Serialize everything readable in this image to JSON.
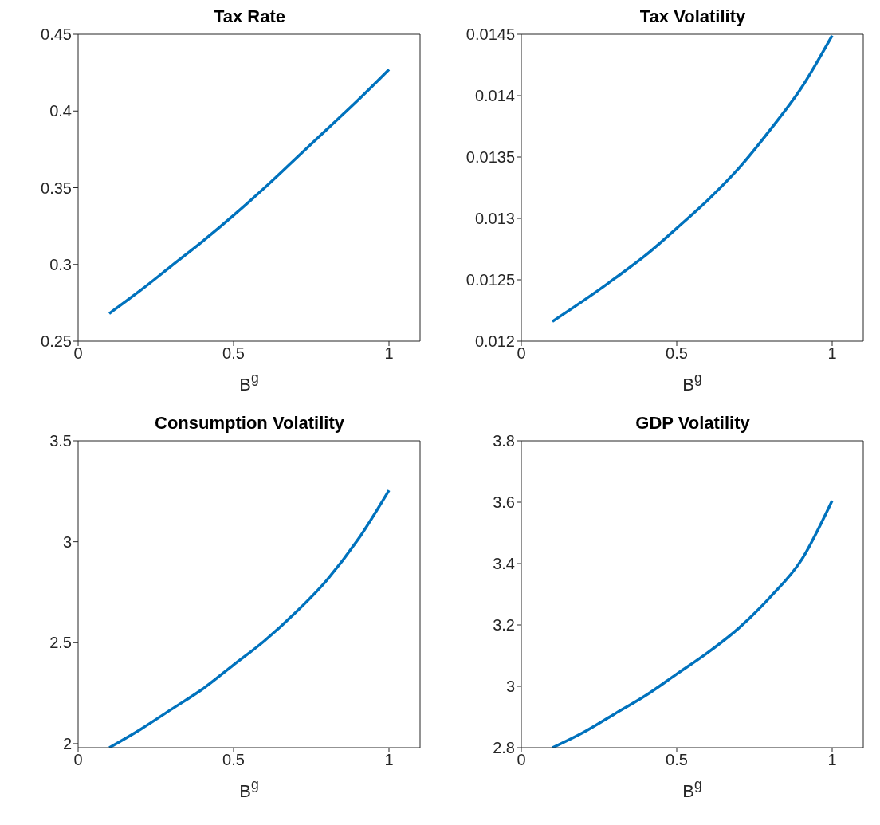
{
  "chart_data": [
    {
      "type": "line",
      "title": "Tax Rate",
      "xlabel": "B$^{g}$",
      "x": [
        0.1,
        0.2,
        0.3,
        0.4,
        0.5,
        0.6,
        0.7,
        0.8,
        0.9,
        1
      ],
      "series": [
        {
          "color": "#0072bd",
          "values": [
            0.268,
            0.283,
            0.299,
            0.315,
            0.332,
            0.35,
            0.369,
            0.388,
            0.407,
            0.427
          ]
        }
      ],
      "xlim": [
        0,
        1.1
      ],
      "xticks": [
        0,
        0.5,
        1
      ],
      "ylim": [
        0.25,
        0.45
      ],
      "yticks": [
        0.25,
        0.3,
        0.35,
        0.4,
        0.45
      ],
      "grid": false,
      "legend": false,
      "marker": "none",
      "line_style": "solid"
    },
    {
      "type": "line",
      "title": "Tax Volatility",
      "xlabel": "B$^{g}$",
      "x": [
        0.1,
        0.2,
        0.3,
        0.4,
        0.5,
        0.6,
        0.7,
        0.8,
        0.9,
        1
      ],
      "series": [
        {
          "color": "#0072bd",
          "values": [
            0.01216,
            0.01233,
            0.01251,
            0.0127,
            0.01292,
            0.01315,
            0.01341,
            0.01372,
            0.01406,
            0.01449
          ]
        }
      ],
      "xlim": [
        0,
        1.1
      ],
      "xticks": [
        0,
        0.5,
        1
      ],
      "ylim": [
        0.012,
        0.0145
      ],
      "yticks": [
        0.012,
        0.0125,
        0.013,
        0.0135,
        0.014,
        0.0145
      ],
      "grid": false,
      "legend": false,
      "marker": "none",
      "line_style": "solid"
    },
    {
      "type": "line",
      "title": "Consumption Volatility",
      "xlabel": "B$^{g}$",
      "x": [
        0.1,
        0.2,
        0.3,
        0.4,
        0.5,
        0.6,
        0.7,
        0.8,
        0.9,
        1
      ],
      "series": [
        {
          "color": "#0072bd",
          "values": [
            1.98,
            2.07,
            2.17,
            2.27,
            2.39,
            2.51,
            2.65,
            2.81,
            3.01,
            3.255
          ]
        }
      ],
      "xlim": [
        0,
        1.1
      ],
      "xticks": [
        0,
        0.5,
        1
      ],
      "ylim": [
        1.98,
        3.5
      ],
      "yticks": [
        2,
        2.5,
        3,
        3.5
      ],
      "grid": false,
      "legend": false,
      "marker": "none",
      "line_style": "solid"
    },
    {
      "type": "line",
      "title": "GDP Volatility",
      "xlabel": "B$^{g}$",
      "x": [
        0.1,
        0.2,
        0.3,
        0.4,
        0.5,
        0.6,
        0.7,
        0.8,
        0.9,
        1
      ],
      "series": [
        {
          "color": "#0072bd",
          "values": [
            2.8,
            2.85,
            2.91,
            2.97,
            3.04,
            3.11,
            3.19,
            3.29,
            3.41,
            3.605
          ]
        }
      ],
      "xlim": [
        0,
        1.1
      ],
      "xticks": [
        0,
        0.5,
        1
      ],
      "ylim": [
        2.8,
        3.8
      ],
      "yticks": [
        2.8,
        3,
        3.2,
        3.4,
        3.6,
        3.8
      ],
      "grid": false,
      "legend": false,
      "marker": "none",
      "line_style": "solid"
    }
  ]
}
